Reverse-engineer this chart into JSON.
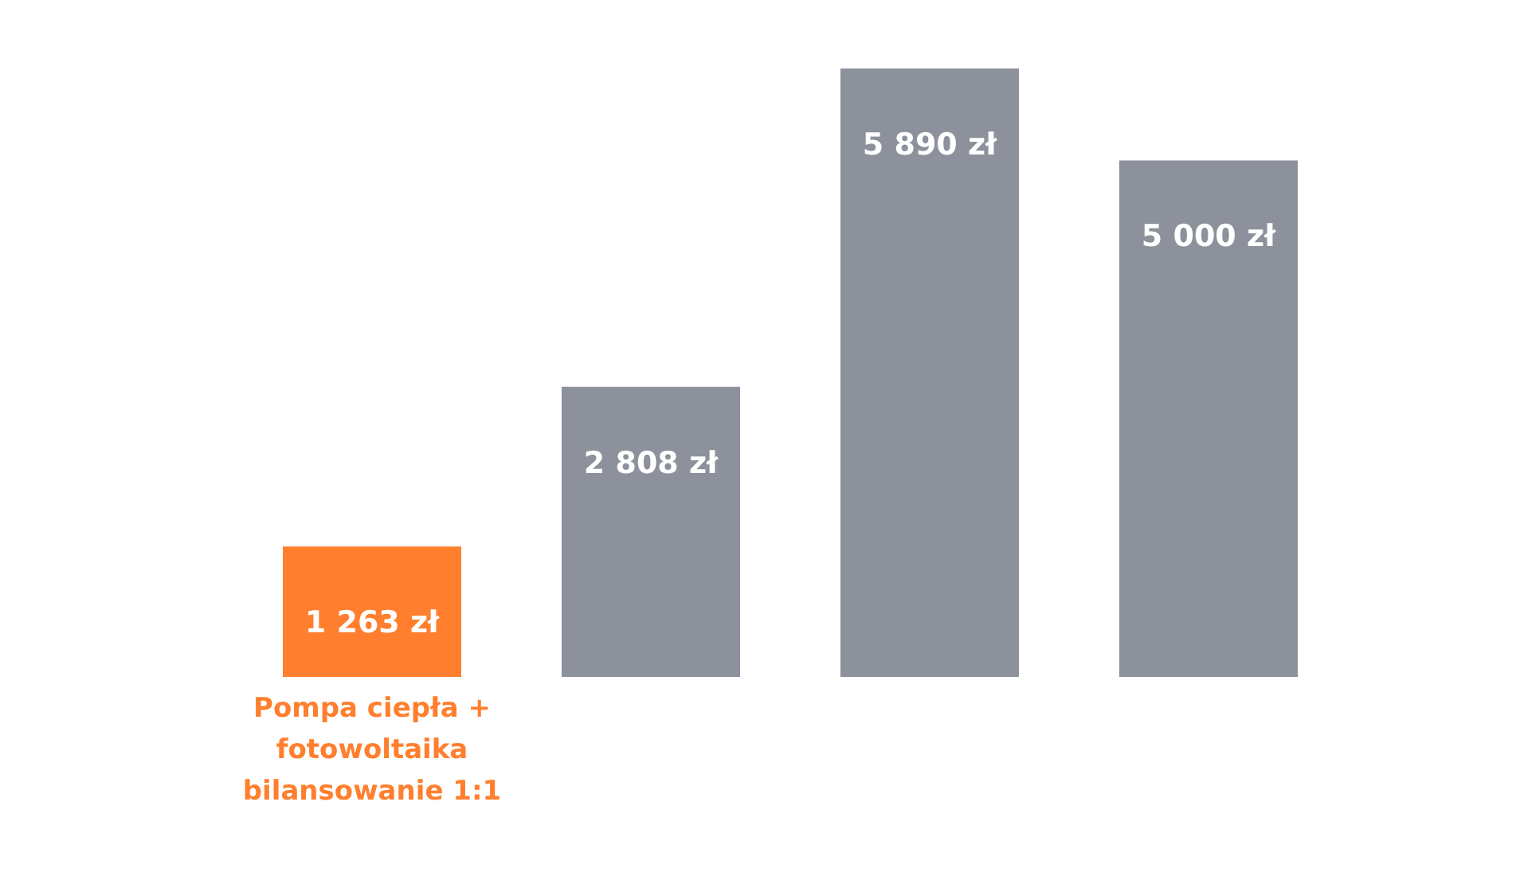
{
  "chart_data": {
    "type": "bar",
    "categories": [
      "Pompa ciepła +\nfotowoltaika\nbilansowanie 1:1",
      null,
      null,
      null
    ],
    "values": [
      1263,
      2808,
      5890,
      5000
    ],
    "colors": [
      "#ff7f2e",
      "#8c919c",
      "#8c919c",
      "#8c919c"
    ],
    "value_labels": [
      "1 263 zł",
      "2 808 zł",
      "5 890 zł",
      "5 000 zł"
    ]
  }
}
